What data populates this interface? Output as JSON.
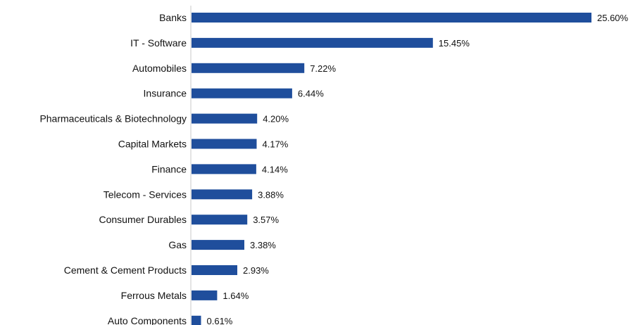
{
  "chart_data": {
    "type": "bar",
    "orientation": "horizontal",
    "categories": [
      "Banks",
      "IT - Software",
      "Automobiles",
      "Insurance",
      "Pharmaceuticals & Biotechnology",
      "Capital Markets",
      "Finance",
      "Telecom - Services",
      "Consumer Durables",
      "Gas",
      "Cement & Cement Products",
      "Ferrous Metals",
      "Auto Components"
    ],
    "values": [
      25.6,
      15.45,
      7.22,
      6.44,
      4.2,
      4.17,
      4.14,
      3.88,
      3.57,
      3.38,
      2.93,
      1.64,
      0.61
    ],
    "value_labels": [
      "25.60%",
      "15.45%",
      "7.22%",
      "6.44%",
      "4.20%",
      "4.17%",
      "4.14%",
      "3.88%",
      "3.57%",
      "3.38%",
      "2.93%",
      "1.64%",
      "0.61%"
    ],
    "title": "",
    "xlabel": "",
    "ylabel": "",
    "xlim": [
      0,
      25.6
    ],
    "grid": false,
    "legend": false,
    "bar_color": "#1f4e9c",
    "axis_color": "#c8c8c8"
  }
}
